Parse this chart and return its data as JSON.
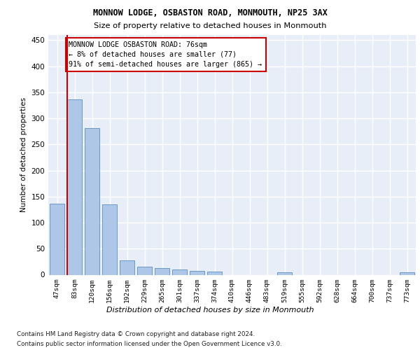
{
  "title1": "MONNOW LODGE, OSBASTON ROAD, MONMOUTH, NP25 3AX",
  "title2": "Size of property relative to detached houses in Monmouth",
  "xlabel": "Distribution of detached houses by size in Monmouth",
  "ylabel": "Number of detached properties",
  "bar_labels": [
    "47sqm",
    "83sqm",
    "120sqm",
    "156sqm",
    "192sqm",
    "229sqm",
    "265sqm",
    "301sqm",
    "337sqm",
    "374sqm",
    "410sqm",
    "446sqm",
    "483sqm",
    "519sqm",
    "555sqm",
    "592sqm",
    "628sqm",
    "664sqm",
    "700sqm",
    "737sqm",
    "773sqm"
  ],
  "bar_values": [
    136,
    336,
    281,
    135,
    27,
    16,
    13,
    10,
    7,
    6,
    0,
    0,
    0,
    5,
    0,
    0,
    0,
    0,
    0,
    0,
    5
  ],
  "bar_color": "#aec6e8",
  "bar_edge_color": "#5a8fc2",
  "background_color": "#e8eef8",
  "grid_color": "#ffffff",
  "annotation_text": "MONNOW LODGE OSBASTON ROAD: 76sqm\n← 8% of detached houses are smaller (77)\n91% of semi-detached houses are larger (865) →",
  "vline_color": "#cc0000",
  "box_edge_color": "#cc0000",
  "footnote1": "Contains HM Land Registry data © Crown copyright and database right 2024.",
  "footnote2": "Contains public sector information licensed under the Open Government Licence v3.0.",
  "ylim": [
    0,
    460
  ],
  "yticks": [
    0,
    50,
    100,
    150,
    200,
    250,
    300,
    350,
    400,
    450
  ]
}
